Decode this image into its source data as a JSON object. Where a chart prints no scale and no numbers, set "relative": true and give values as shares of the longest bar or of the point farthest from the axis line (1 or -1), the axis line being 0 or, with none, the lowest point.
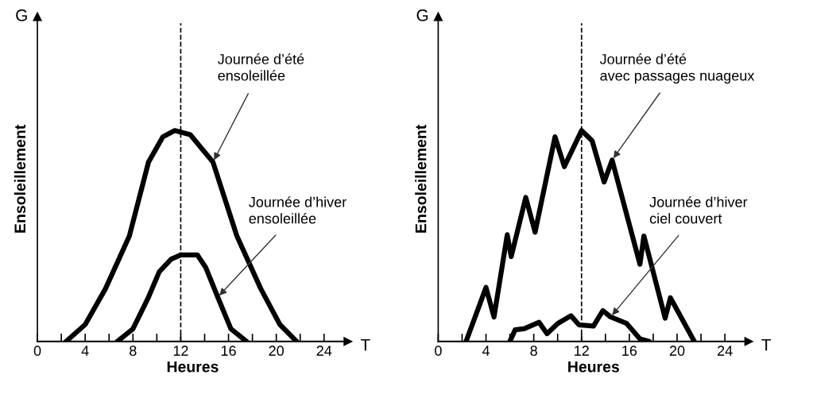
{
  "chart_data": [
    {
      "type": "line",
      "relative": true,
      "xlabel": "Heures",
      "ylabel": "Ensoleillement",
      "xlim": [
        0,
        26
      ],
      "xticks": [
        0,
        {
          "value": 2,
          "label": null
        },
        4,
        {
          "value": 6,
          "label": null
        },
        8,
        {
          "value": 10,
          "label": null
        },
        12,
        {
          "value": 14,
          "label": null
        },
        16,
        {
          "value": 18,
          "label": null
        },
        20,
        {
          "value": 22,
          "label": null
        },
        24
      ],
      "tick_labels": "x",
      "grid": false,
      "legend": false,
      "series": [
        {
          "color": "#000000",
          "x": [
            2.4,
            4,
            5.7,
            7.7,
            9.3,
            10.5,
            11.5,
            12.8,
            14.7,
            16.7,
            18.7,
            20.3,
            21.7
          ],
          "values": [
            0,
            0.08,
            0.25,
            0.5,
            0.85,
            0.97,
            1,
            0.98,
            0.85,
            0.5,
            0.25,
            0.08,
            0
          ]
        },
        {
          "color": "#000000",
          "x": [
            6.7,
            8,
            9.3,
            10.2,
            11.2,
            12,
            13.4,
            14.1,
            15.1,
            16.2,
            17.5
          ],
          "values": [
            0,
            0.06,
            0.21,
            0.33,
            0.39,
            0.41,
            0.41,
            0.35,
            0.21,
            0.06,
            0
          ]
        }
      ],
      "ref_lines": [
        {
          "axis": "x",
          "value": 12,
          "line_style": "dashed",
          "color": "#000000"
        }
      ],
      "annotations": [
        "G",
        "T",
        "Journée d’été\nensoleillée",
        "Journée d’hiver\nensoleillée"
      ]
    },
    {
      "type": "line",
      "relative": true,
      "xlabel": "Heures",
      "ylabel": "Ensoleillement",
      "xlim": [
        0,
        26
      ],
      "xticks": [
        0,
        {
          "value": 2,
          "label": null
        },
        4,
        {
          "value": 6,
          "label": null
        },
        8,
        {
          "value": 10,
          "label": null
        },
        12,
        {
          "value": 14,
          "label": null
        },
        16,
        {
          "value": 18,
          "label": null
        },
        20,
        {
          "value": 22,
          "label": null
        },
        24
      ],
      "tick_labels": "x",
      "grid": false,
      "legend": false,
      "series": [
        {
          "color": "#000000",
          "x": [
            2.33,
            4.0,
            4.67,
            5.78,
            6.11,
            7.33,
            8.11,
            9.78,
            10.56,
            12.0,
            12.89,
            13.89,
            14.56,
            16.89,
            17.22,
            19.0,
            19.44,
            21.44
          ],
          "values": [
            0,
            0.256,
            0.116,
            0.506,
            0.402,
            0.683,
            0.518,
            0.97,
            0.829,
            1,
            0.951,
            0.756,
            0.86,
            0.366,
            0.5,
            0.11,
            0.207,
            0
          ]
        },
        {
          "color": "#000000",
          "x": [
            6.0,
            6.44,
            7.22,
            8.44,
            9.11,
            10.0,
            11.11,
            11.78,
            13.0,
            13.78,
            14.44,
            15.78,
            16.89,
            17.67
          ],
          "values": [
            0,
            0.055,
            0.061,
            0.091,
            0.037,
            0.085,
            0.122,
            0.079,
            0.073,
            0.146,
            0.116,
            0.085,
            0.012,
            0
          ]
        }
      ],
      "ref_lines": [
        {
          "axis": "x",
          "value": 12,
          "line_style": "dashed",
          "color": "#000000"
        }
      ],
      "annotations": [
        "G",
        "T",
        "Journée d’été\navec passages nuageux",
        "Journée d’hiver\nciel couvert"
      ]
    }
  ]
}
